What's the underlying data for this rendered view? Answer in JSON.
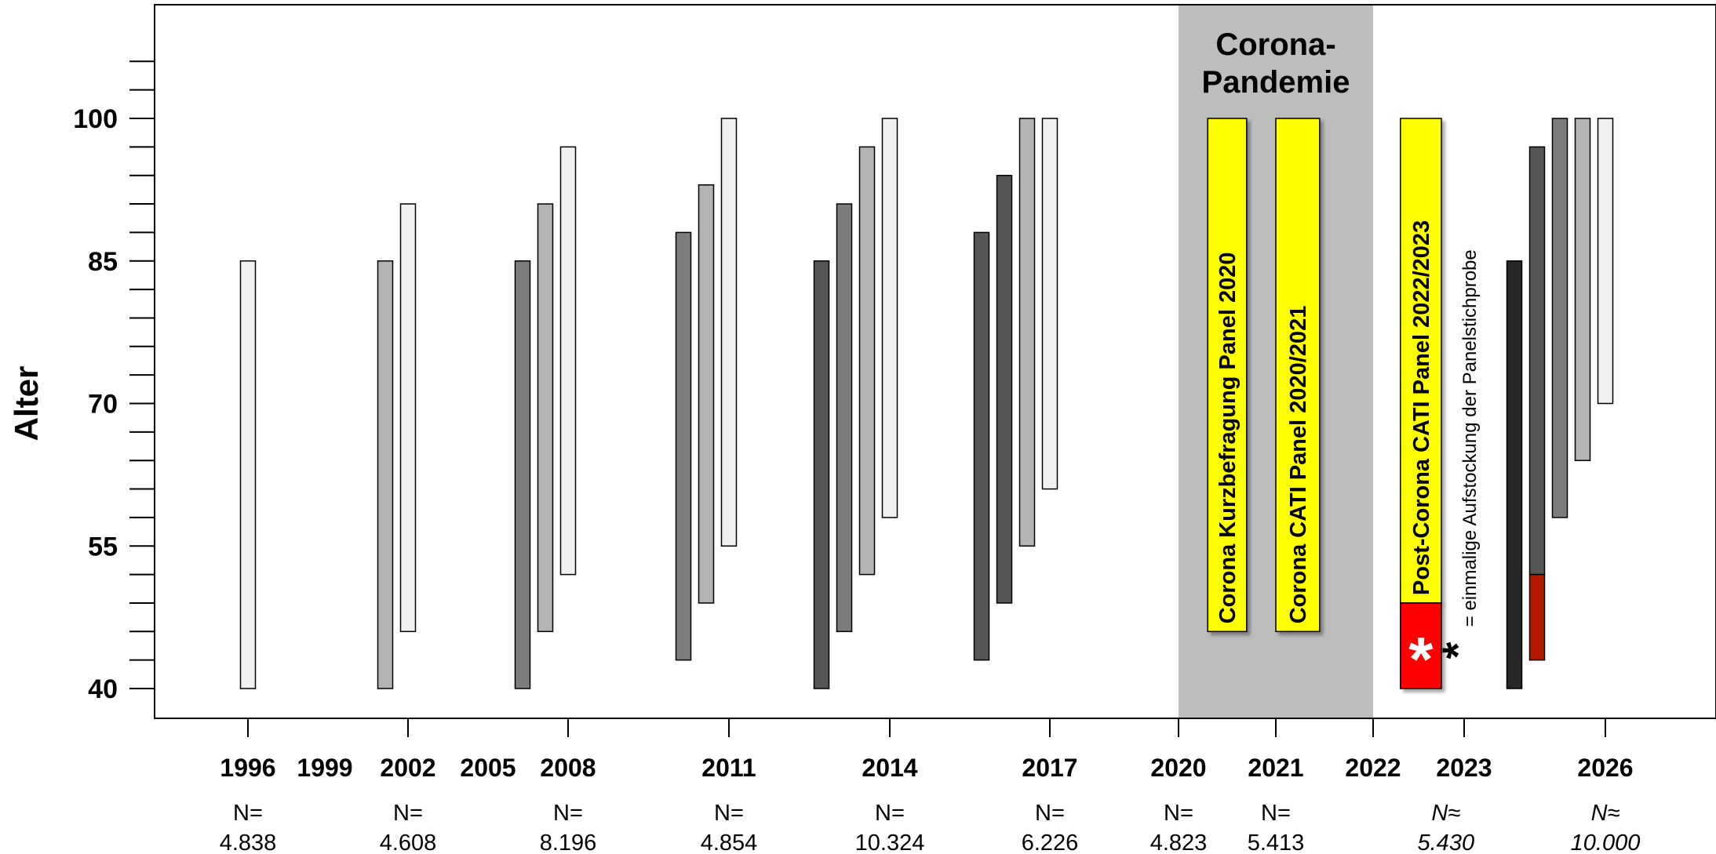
{
  "chart_data": {
    "type": "bar",
    "subtype": "floating-range",
    "ylabel": "Alter",
    "yticks": [
      40,
      55,
      70,
      85,
      100
    ],
    "ylim": [
      37,
      112
    ],
    "grid": false,
    "years": [
      {
        "key": "1996",
        "label": "1996",
        "muted": false
      },
      {
        "key": "1999",
        "label": "1999",
        "muted": true
      },
      {
        "key": "2002",
        "label": "2002",
        "muted": false
      },
      {
        "key": "2005",
        "label": "2005",
        "muted": true
      },
      {
        "key": "2008",
        "label": "2008",
        "muted": false
      },
      {
        "key": "2011",
        "label": "2011",
        "muted": false
      },
      {
        "key": "2014",
        "label": "2014",
        "muted": false
      },
      {
        "key": "2017",
        "label": "2017",
        "muted": false
      },
      {
        "key": "2020",
        "label": "2020",
        "muted": false
      },
      {
        "key": "2021",
        "label": "2021",
        "muted": false
      },
      {
        "key": "2022",
        "label": "2022",
        "muted": false
      },
      {
        "key": "2023",
        "label": "2023",
        "muted": false
      },
      {
        "key": "2026",
        "label": "2026",
        "muted": false
      }
    ],
    "sample_sizes": [
      {
        "year": "1996",
        "label": "N=",
        "value": "4.838",
        "italic": false
      },
      {
        "year": "2002",
        "label": "N=",
        "value": "4.608",
        "italic": false
      },
      {
        "year": "2008",
        "label": "N=",
        "value": "8.196",
        "italic": false
      },
      {
        "year": "2011",
        "label": "N=",
        "value": "4.854",
        "italic": false
      },
      {
        "year": "2014",
        "label": "N=",
        "value": "10.324",
        "italic": false
      },
      {
        "year": "2017",
        "label": "N=",
        "value": "6.226",
        "italic": false
      },
      {
        "year": "2020",
        "label": "N=",
        "value": "4.823",
        "italic": false
      },
      {
        "year": "2021",
        "label": "N=",
        "value": "5.413",
        "italic": false
      },
      {
        "year": "2022.8",
        "label": "N≈",
        "value": "5.430",
        "italic": true
      },
      {
        "year": "2026",
        "label": "N≈",
        "value": "10.000",
        "italic": true
      }
    ],
    "pandemic_region": {
      "label_line1": "Corona-",
      "label_line2": "Pandemie",
      "color": "#bdbdbd"
    },
    "bars": [
      {
        "year": 1996,
        "offset": 0,
        "low": 40,
        "high": 85,
        "color": "#f0f0f0"
      },
      {
        "year": 2002,
        "offset": -1,
        "low": 40,
        "high": 85,
        "color": "#b4b4b4"
      },
      {
        "year": 2002,
        "offset": 0,
        "low": 46,
        "high": 91,
        "color": "#f0f0f0"
      },
      {
        "year": 2008,
        "offset": -2,
        "low": 40,
        "high": 85,
        "color": "#7d7d7d"
      },
      {
        "year": 2008,
        "offset": -1,
        "low": 46,
        "high": 91,
        "color": "#b4b4b4"
      },
      {
        "year": 2008,
        "offset": 0,
        "low": 52,
        "high": 97,
        "color": "#f0f0f0"
      },
      {
        "year": 2011,
        "offset": -2,
        "low": 43,
        "high": 88,
        "color": "#7d7d7d"
      },
      {
        "year": 2011,
        "offset": -1,
        "low": 49,
        "high": 93,
        "color": "#b4b4b4"
      },
      {
        "year": 2011,
        "offset": 0,
        "low": 55,
        "high": 100,
        "color": "#f0f0f0"
      },
      {
        "year": 2014,
        "offset": -3,
        "low": 40,
        "high": 85,
        "color": "#555555"
      },
      {
        "year": 2014,
        "offset": -2,
        "low": 46,
        "high": 91,
        "color": "#7d7d7d"
      },
      {
        "year": 2014,
        "offset": -1,
        "low": 52,
        "high": 97,
        "color": "#b4b4b4"
      },
      {
        "year": 2014,
        "offset": 0,
        "low": 58,
        "high": 100,
        "color": "#f0f0f0"
      },
      {
        "year": 2017,
        "offset": -3,
        "low": 43,
        "high": 88,
        "color": "#555555"
      },
      {
        "year": 2017,
        "offset": -2,
        "low": 49,
        "high": 94,
        "color": "#555555"
      },
      {
        "year": 2017,
        "offset": -1,
        "low": 55,
        "high": 100,
        "color": "#b4b4b4"
      },
      {
        "year": 2017,
        "offset": 0,
        "low": 61,
        "high": 100,
        "color": "#f0f0f0"
      },
      {
        "year": 2026,
        "offset": -4,
        "low": 40,
        "high": 85,
        "color": "#262626"
      },
      {
        "year": 2026,
        "offset": -3,
        "low": 52,
        "high": 97,
        "color": "#555555"
      },
      {
        "year": 2026,
        "offset": -3,
        "low": 43,
        "high": 52,
        "color": "#b21a00"
      },
      {
        "year": 2026,
        "offset": -2,
        "low": 58,
        "high": 100,
        "color": "#7d7d7d"
      },
      {
        "year": 2026,
        "offset": -1,
        "low": 64,
        "high": 100,
        "color": "#b4b4b4"
      },
      {
        "year": 2026,
        "offset": 0,
        "low": 70,
        "high": 100,
        "color": "#f0f0f0"
      }
    ],
    "corona_bars": [
      {
        "year_start": 2020.3,
        "year_end": 2020.7,
        "low": 46,
        "high": 100,
        "color": "#ffff00",
        "label": "Corona Kurzbefragung Panel 2020"
      },
      {
        "year_start": 2021.0,
        "year_end": 2021.45,
        "low": 46,
        "high": 100,
        "color": "#ffff00",
        "label": "Corona CATI Panel 2020/2021"
      },
      {
        "year_start": 2022.3,
        "year_end": 2022.75,
        "low": 49,
        "high": 100,
        "color": "#ffff00",
        "label": "Post-Corona CATI Panel 2022/2023"
      }
    ],
    "refresh_segment": {
      "year_start": 2022.3,
      "year_end": 2022.75,
      "low": 40,
      "high": 49,
      "color": "#ff0000",
      "symbol": "*"
    },
    "annotation": {
      "symbol": "*",
      "text": "= einmalige Aufstockung der Panelstichprobe"
    }
  }
}
